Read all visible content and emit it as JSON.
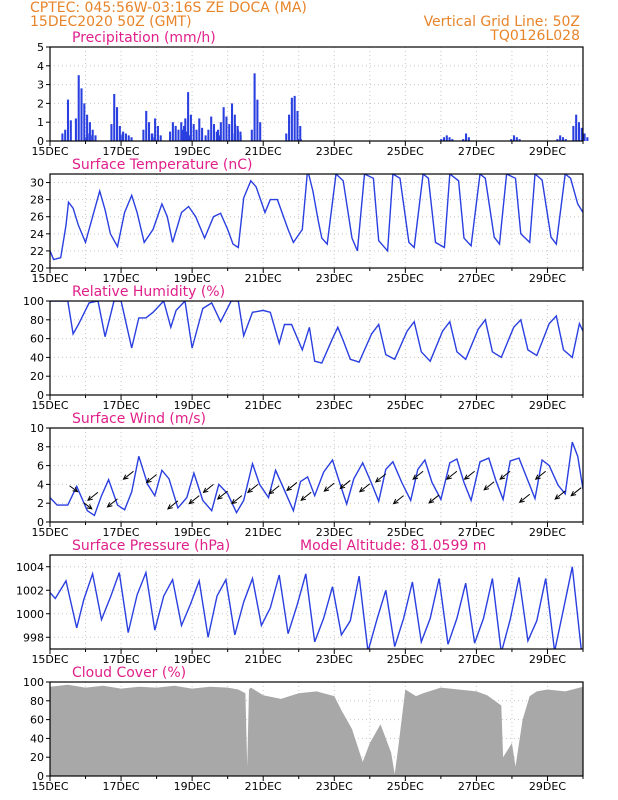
{
  "header": {
    "line1": "CPTEC:   045:56W-03:16S  ZE DOCA (MA)",
    "line2": "15DEC2020 50Z (GMT)",
    "grid_note": "Vertical Grid Line: 50Z",
    "run_code": "TQ0126L028"
  },
  "colors": {
    "header": "#e8842a",
    "title": "#e0208a",
    "series": "#2a3fe0",
    "bars": "#2a3fe0",
    "cloud": "#a8a8a8"
  },
  "chart_data": [
    {
      "id": "precip",
      "type": "bar",
      "title": "Precipitation  (mm/h)",
      "ylim": [
        0,
        5
      ],
      "yticks": [
        0,
        1,
        2,
        3,
        4,
        5
      ],
      "x_labels": [
        "15DEC",
        "17DEC",
        "19DEC",
        "21DEC",
        "23DEC",
        "25DEC",
        "27DEC",
        "29DEC"
      ],
      "x_range_days": [
        0,
        15
      ],
      "grid": true,
      "events": [
        {
          "day": 0.32,
          "values": [
            0.4,
            0.6,
            2.2,
            1.1
          ]
        },
        {
          "day": 0.7,
          "values": [
            1.2,
            3.5,
            2.8,
            2.0,
            1.4,
            1.0,
            0.6,
            0.3
          ]
        },
        {
          "day": 1.0,
          "values": [
            0.2,
            0.4,
            0.3
          ]
        },
        {
          "day": 1.7,
          "values": [
            0.9,
            2.5,
            1.8,
            0.8,
            0.4
          ]
        },
        {
          "day": 1.95,
          "values": [
            0.3,
            0.5,
            0.4,
            0.3,
            0.2
          ]
        },
        {
          "day": 2.6,
          "values": [
            0.6,
            1.6,
            1.0,
            0.4,
            0.2
          ]
        },
        {
          "day": 2.85,
          "values": [
            0.4,
            1.2,
            0.8,
            0.3
          ]
        },
        {
          "day": 3.35,
          "values": [
            0.5,
            1.0,
            0.8,
            0.6,
            1.0,
            0.8,
            0.5,
            0.3
          ]
        },
        {
          "day": 3.7,
          "values": [
            0.6,
            1.2,
            2.6,
            1.4,
            0.9,
            0.6,
            1.2,
            0.7
          ]
        },
        {
          "day": 4.35,
          "values": [
            0.3,
            0.6,
            1.3,
            0.9,
            0.5,
            0.3
          ]
        },
        {
          "day": 4.7,
          "values": [
            0.6,
            1.0,
            1.8,
            1.3,
            0.9,
            2.0,
            1.4,
            0.8,
            0.5
          ]
        },
        {
          "day": 5.1,
          "values": [
            0.4,
            0.9,
            0.6,
            0.3
          ]
        },
        {
          "day": 5.65,
          "values": [
            0.6,
            3.6,
            2.2,
            1.0
          ]
        },
        {
          "day": 6.62,
          "values": [
            0.4,
            1.4,
            2.3,
            2.4,
            1.6,
            0.8
          ]
        },
        {
          "day": 6.95,
          "values": [
            0.1,
            0.1
          ]
        },
        {
          "day": 10.98,
          "values": [
            0.1,
            0.2,
            0.3,
            0.2,
            0.1
          ]
        },
        {
          "day": 11.6,
          "values": [
            0.1,
            0.4,
            0.2
          ]
        },
        {
          "day": 12.95,
          "values": [
            0.1,
            0.3,
            0.2,
            0.1
          ]
        },
        {
          "day": 14.25,
          "values": [
            0.1,
            0.3,
            0.2,
            0.1
          ]
        },
        {
          "day": 14.7,
          "values": [
            0.8,
            1.4,
            1.0,
            0.7,
            0.4,
            0.2
          ]
        }
      ]
    },
    {
      "id": "temp",
      "type": "line",
      "title": "Surface Temperature  (nC)",
      "ylim": [
        20,
        31
      ],
      "yticks": [
        20,
        22,
        24,
        26,
        28,
        30
      ],
      "x_labels": [
        "15DEC",
        "17DEC",
        "19DEC",
        "21DEC",
        "23DEC",
        "25DEC",
        "27DEC",
        "29DEC"
      ],
      "grid": true,
      "x_days": [
        0,
        0.1,
        0.3,
        0.45,
        0.52,
        0.65,
        0.8,
        1,
        1.2,
        1.4,
        1.55,
        1.7,
        1.9,
        2.1,
        2.3,
        2.45,
        2.65,
        2.9,
        3.15,
        3.3,
        3.45,
        3.7,
        3.9,
        4.1,
        4.35,
        4.6,
        4.8,
        5,
        5.15,
        5.3,
        5.45,
        5.65,
        5.8,
        6.05,
        6.2,
        6.4,
        6.7,
        6.85,
        7.1,
        7.25,
        7.4,
        7.55,
        7.65,
        7.8,
        8.05,
        8.25,
        8.5,
        8.65,
        8.85,
        9.1,
        9.25,
        9.5,
        9.65,
        9.85,
        10.1,
        10.25,
        10.5,
        10.65,
        10.85,
        11.1,
        11.25,
        11.5,
        11.65,
        11.85,
        12.1,
        12.25,
        12.5,
        12.65,
        12.85,
        13.1,
        13.25,
        13.5,
        13.65,
        13.85,
        14.1,
        14.25,
        14.5,
        14.65,
        14.85,
        15
      ],
      "values": [
        22,
        21,
        21.2,
        25,
        27.7,
        27,
        25,
        23,
        26,
        29,
        26.8,
        24,
        22.5,
        26.5,
        28.5,
        26.5,
        23,
        24.5,
        27.5,
        26,
        23,
        26.5,
        27.2,
        26,
        23.5,
        26,
        26.4,
        24.5,
        22.8,
        22.4,
        28.2,
        30.2,
        29.5,
        26.5,
        28,
        28,
        24.5,
        23,
        24.5,
        31.5,
        29,
        25.5,
        23.5,
        22.8,
        31,
        30.2,
        23.5,
        22,
        31,
        30.5,
        23.2,
        22,
        31,
        30.5,
        23,
        22.4,
        31,
        30.5,
        23,
        22.4,
        31,
        30.2,
        23.5,
        22.6,
        31,
        30.5,
        23.6,
        22.8,
        31,
        30.5,
        24,
        23,
        31,
        30.3,
        23.6,
        22.8,
        31,
        30.5,
        27.5,
        26.5
      ]
    },
    {
      "id": "rh",
      "type": "line",
      "title": "Relative Humidity  (%)",
      "ylim": [
        0,
        100
      ],
      "yticks": [
        0,
        20,
        40,
        60,
        80,
        100
      ],
      "x_labels": [
        "15DEC",
        "17DEC",
        "19DEC",
        "21DEC",
        "23DEC",
        "25DEC",
        "27DEC",
        "29DEC"
      ],
      "grid": true,
      "x_days": [
        0,
        0.5,
        0.65,
        0.8,
        1.1,
        1.35,
        1.55,
        1.8,
        2,
        2.3,
        2.5,
        2.7,
        2.9,
        3.2,
        3.4,
        3.55,
        3.8,
        4,
        4.3,
        4.55,
        4.8,
        5.1,
        5.3,
        5.45,
        5.7,
        6,
        6.2,
        6.45,
        6.6,
        6.8,
        7.1,
        7.3,
        7.45,
        7.65,
        7.95,
        8.1,
        8.25,
        8.45,
        8.7,
        9.05,
        9.25,
        9.45,
        9.7,
        10.05,
        10.25,
        10.45,
        10.7,
        11.05,
        11.25,
        11.45,
        11.7,
        12.05,
        12.25,
        12.45,
        12.7,
        13.05,
        13.25,
        13.45,
        13.7,
        14.05,
        14.25,
        14.45,
        14.7,
        14.9,
        15
      ],
      "values": [
        100,
        100,
        65,
        75,
        98,
        100,
        62,
        100,
        100,
        50,
        82,
        82,
        88,
        100,
        72,
        90,
        100,
        50,
        92,
        98,
        78,
        100,
        100,
        63,
        88,
        90,
        88,
        55,
        75,
        75,
        48,
        72,
        36,
        34,
        60,
        72,
        58,
        38,
        35,
        65,
        75,
        43,
        38,
        68,
        78,
        46,
        36,
        68,
        78,
        46,
        38,
        70,
        80,
        46,
        40,
        72,
        80,
        48,
        42,
        76,
        84,
        48,
        40,
        76,
        68
      ]
    },
    {
      "id": "wind",
      "type": "line",
      "title": "Surface Wind  (m/s)",
      "ylim": [
        0,
        10
      ],
      "yticks": [
        0,
        2,
        4,
        6,
        8,
        10
      ],
      "x_labels": [
        "15DEC",
        "17DEC",
        "19DEC",
        "21DEC",
        "23DEC",
        "25DEC",
        "27DEC",
        "29DEC"
      ],
      "grid": true,
      "x_days": [
        0,
        0.2,
        0.5,
        0.75,
        0.9,
        1.05,
        1.25,
        1.45,
        1.65,
        1.9,
        2.1,
        2.3,
        2.5,
        2.75,
        2.95,
        3.15,
        3.35,
        3.6,
        3.85,
        4.05,
        4.3,
        4.55,
        4.75,
        5,
        5.25,
        5.45,
        5.7,
        5.9,
        6.15,
        6.35,
        6.55,
        6.85,
        7.05,
        7.25,
        7.45,
        7.7,
        7.95,
        8.15,
        8.35,
        8.55,
        8.8,
        9.05,
        9.25,
        9.45,
        9.65,
        9.9,
        10.15,
        10.35,
        10.55,
        10.75,
        11,
        11.25,
        11.45,
        11.65,
        11.85,
        12.1,
        12.35,
        12.55,
        12.75,
        12.95,
        13.2,
        13.45,
        13.65,
        13.85,
        14.05,
        14.3,
        14.5,
        14.7,
        14.85,
        15
      ],
      "values": [
        2.6,
        1.8,
        1.8,
        3.8,
        2.5,
        1.2,
        0.7,
        2.8,
        4.5,
        1.8,
        1.3,
        3.2,
        7,
        4,
        2.8,
        5.5,
        4.6,
        1.5,
        2.6,
        5.2,
        2.3,
        1.2,
        4,
        3,
        1,
        2.3,
        6.2,
        4,
        2.6,
        5.5,
        3.8,
        1.2,
        4.3,
        4.8,
        2.8,
        5.3,
        6.6,
        4.2,
        1.9,
        4.6,
        6.3,
        4.1,
        2.2,
        5.6,
        6.4,
        4.2,
        2.3,
        5.6,
        6.6,
        4.2,
        2.4,
        6.3,
        6.7,
        4.2,
        2.3,
        6.4,
        6.8,
        4.4,
        2.4,
        6.5,
        6.8,
        4.4,
        2.5,
        6.6,
        6,
        3.9,
        3,
        8.5,
        7,
        3.5
      ],
      "arrows": [
        {
          "day": 0.55,
          "dir": "se"
        },
        {
          "day": 0.95,
          "dir": "se"
        },
        {
          "day": 1.35,
          "dir": "sw"
        },
        {
          "day": 1.9,
          "dir": "sw"
        },
        {
          "day": 2.35,
          "dir": "sw"
        },
        {
          "day": 3.0,
          "dir": "sw"
        },
        {
          "day": 3.6,
          "dir": "sw"
        },
        {
          "day": 4.2,
          "dir": "sw"
        },
        {
          "day": 4.6,
          "dir": "sw"
        },
        {
          "day": 5.0,
          "dir": "sw"
        },
        {
          "day": 5.4,
          "dir": "sw"
        },
        {
          "day": 5.85,
          "dir": "sw"
        },
        {
          "day": 6.45,
          "dir": "sw"
        },
        {
          "day": 6.95,
          "dir": "sw"
        },
        {
          "day": 7.35,
          "dir": "sw"
        },
        {
          "day": 8.0,
          "dir": "sw"
        },
        {
          "day": 8.45,
          "dir": "sw"
        },
        {
          "day": 9.0,
          "dir": "sw"
        },
        {
          "day": 9.45,
          "dir": "sw"
        },
        {
          "day": 9.95,
          "dir": "sw"
        },
        {
          "day": 10.5,
          "dir": "sw"
        },
        {
          "day": 10.95,
          "dir": "sw"
        },
        {
          "day": 11.45,
          "dir": "sw"
        },
        {
          "day": 11.95,
          "dir": "sw"
        },
        {
          "day": 12.5,
          "dir": "sw"
        },
        {
          "day": 12.95,
          "dir": "sw"
        },
        {
          "day": 13.5,
          "dir": "sw"
        },
        {
          "day": 13.95,
          "dir": "sw"
        },
        {
          "day": 14.5,
          "dir": "sw"
        },
        {
          "day": 14.95,
          "dir": "sw"
        }
      ]
    },
    {
      "id": "pres",
      "type": "line",
      "title": "Surface Pressure (hPa)",
      "extra_label": "Model Altitude: 81.0599 m",
      "ylim": [
        997,
        1005
      ],
      "yticks": [
        998,
        1000,
        1002,
        1004
      ],
      "x_labels": [
        "15DEC",
        "17DEC",
        "19DEC",
        "21DEC",
        "23DEC",
        "25DEC",
        "27DEC",
        "29DEC"
      ],
      "grid": true,
      "x_days": [
        0,
        0.15,
        0.45,
        0.75,
        0.95,
        1.2,
        1.45,
        1.7,
        1.95,
        2.2,
        2.45,
        2.7,
        2.95,
        3.2,
        3.45,
        3.7,
        3.95,
        4.2,
        4.45,
        4.7,
        4.95,
        5.2,
        5.45,
        5.7,
        5.95,
        6.2,
        6.45,
        6.7,
        6.95,
        7.2,
        7.45,
        7.7,
        7.95,
        8.2,
        8.45,
        8.7,
        8.95,
        9.2,
        9.45,
        9.7,
        9.95,
        10.2,
        10.45,
        10.7,
        10.95,
        11.2,
        11.45,
        11.7,
        11.95,
        12.2,
        12.45,
        12.7,
        12.95,
        13.2,
        13.45,
        13.7,
        13.95,
        14.2,
        14.45,
        14.7,
        14.95
      ],
      "values": [
        1001.8,
        1001.3,
        1002.8,
        998.8,
        1001.2,
        1003.4,
        999.5,
        1001.4,
        1003.5,
        998.4,
        1001.6,
        1003.5,
        998.6,
        1001.5,
        1002.9,
        999,
        1000.8,
        1002.8,
        998,
        1001.5,
        1002.9,
        998.2,
        1001,
        1003,
        999,
        1000.5,
        1003.3,
        998.3,
        1000.7,
        1003.4,
        997.6,
        999.6,
        1002.3,
        998.2,
        999.4,
        1003.2,
        996.8,
        999.5,
        1002,
        997.2,
        999.6,
        1002.7,
        997.6,
        999.6,
        1003,
        997.4,
        999.6,
        1002.6,
        997.5,
        999.6,
        1003,
        996.7,
        999.5,
        1003.1,
        997.7,
        999.4,
        1003,
        996.8,
        1000.4,
        1004,
        997
      ]
    },
    {
      "id": "cloud",
      "type": "area",
      "title": "Cloud Cover  (%)",
      "ylim": [
        0,
        100
      ],
      "yticks": [
        0,
        20,
        40,
        60,
        80,
        100
      ],
      "x_labels": [
        "15DEC",
        "17DEC",
        "19DEC",
        "21DEC",
        "23DEC",
        "25DEC",
        "27DEC",
        "29DEC"
      ],
      "grid": true,
      "x_days": [
        0,
        0.5,
        1,
        1.5,
        2,
        2.5,
        3,
        3.5,
        4,
        4.5,
        5,
        5.3,
        5.5,
        5.55,
        5.6,
        5.65,
        5.7,
        6,
        6.5,
        7,
        7.5,
        8,
        8.2,
        8.5,
        8.8,
        9,
        9.3,
        9.6,
        9.7,
        9.8,
        10,
        10.3,
        10.5,
        11,
        11.5,
        12,
        12.3,
        12.7,
        12.75,
        13,
        13.1,
        13.3,
        13.5,
        13.7,
        14,
        14.5,
        15
      ],
      "values": [
        95,
        97,
        94,
        96,
        93,
        95,
        94,
        96,
        93,
        95,
        94,
        92,
        88,
        10,
        92,
        94,
        93,
        86,
        82,
        88,
        90,
        85,
        70,
        50,
        15,
        35,
        55,
        25,
        2,
        30,
        92,
        85,
        88,
        94,
        92,
        90,
        86,
        75,
        20,
        35,
        10,
        60,
        85,
        90,
        92,
        90,
        95
      ]
    }
  ]
}
